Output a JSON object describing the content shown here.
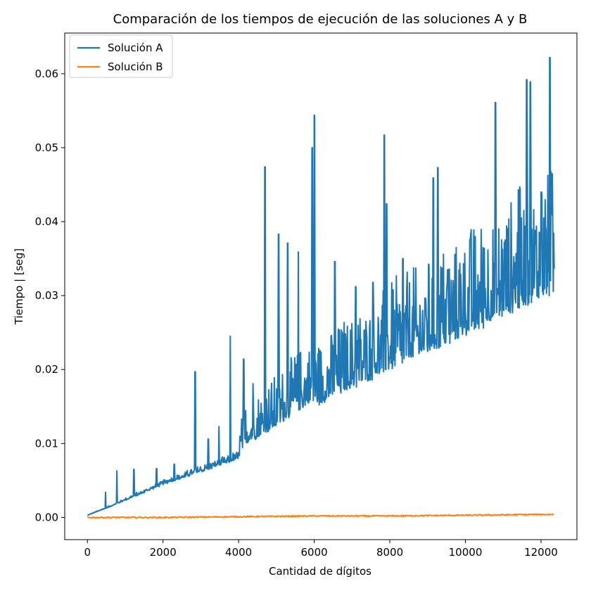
{
  "chart_data": {
    "type": "line",
    "title": "Comparación de los tiempos de ejecución de las soluciones A y B",
    "xlabel": "Cantidad de dígitos",
    "ylabel": "Tiempo | [seg]",
    "xlim": [
      -600,
      12950
    ],
    "ylim": [
      -0.003,
      0.0655
    ],
    "xticks": [
      0,
      2000,
      4000,
      6000,
      8000,
      10000,
      12000
    ],
    "xtick_labels": [
      "0",
      "2000",
      "4000",
      "6000",
      "8000",
      "10000",
      "12000"
    ],
    "yticks": [
      0,
      0.01,
      0.02,
      0.03,
      0.04,
      0.05,
      0.06
    ],
    "ytick_labels": [
      "0.00",
      "0.01",
      "0.02",
      "0.03",
      "0.04",
      "0.05",
      "0.06"
    ],
    "grid": false,
    "legend": "top-left",
    "series": [
      {
        "name": "Solución A",
        "color": "#1f77b4",
        "x": [
          0,
          500,
          1000,
          1500,
          2000,
          2500,
          3000,
          3500,
          4000,
          4200,
          4600,
          5000,
          5500,
          6000,
          6100,
          6500,
          7000,
          7500,
          8000,
          8500,
          9000,
          9500,
          10000,
          10500,
          11000,
          11500,
          12000,
          12350
        ],
        "y": [
          0.0003,
          0.0013,
          0.0024,
          0.0035,
          0.0046,
          0.0055,
          0.0064,
          0.0073,
          0.0082,
          0.0104,
          0.0115,
          0.0128,
          0.0148,
          0.0165,
          0.0158,
          0.017,
          0.0182,
          0.0194,
          0.0208,
          0.022,
          0.0232,
          0.0244,
          0.0257,
          0.027,
          0.0283,
          0.0296,
          0.0308,
          0.0316
        ],
        "peaks": [
          {
            "x": 480,
            "y": 0.0034
          },
          {
            "x": 780,
            "y": 0.0063
          },
          {
            "x": 1230,
            "y": 0.0065
          },
          {
            "x": 1830,
            "y": 0.0066
          },
          {
            "x": 2300,
            "y": 0.0072
          },
          {
            "x": 2850,
            "y": 0.0197
          },
          {
            "x": 3200,
            "y": 0.0106
          },
          {
            "x": 3480,
            "y": 0.0123
          },
          {
            "x": 3780,
            "y": 0.0245
          },
          {
            "x": 4130,
            "y": 0.0214
          },
          {
            "x": 4380,
            "y": 0.0181
          },
          {
            "x": 4700,
            "y": 0.0474
          },
          {
            "x": 5060,
            "y": 0.0383
          },
          {
            "x": 5300,
            "y": 0.0371
          },
          {
            "x": 5580,
            "y": 0.0359
          },
          {
            "x": 5950,
            "y": 0.05
          },
          {
            "x": 6010,
            "y": 0.0544
          },
          {
            "x": 6550,
            "y": 0.0346
          },
          {
            "x": 7100,
            "y": 0.0312
          },
          {
            "x": 7550,
            "y": 0.0318
          },
          {
            "x": 7850,
            "y": 0.0517
          },
          {
            "x": 7910,
            "y": 0.0424
          },
          {
            "x": 8350,
            "y": 0.035
          },
          {
            "x": 8950,
            "y": 0.0296
          },
          {
            "x": 9150,
            "y": 0.0459
          },
          {
            "x": 9270,
            "y": 0.0473
          },
          {
            "x": 9530,
            "y": 0.0335
          },
          {
            "x": 9950,
            "y": 0.0343
          },
          {
            "x": 10500,
            "y": 0.0364
          },
          {
            "x": 10790,
            "y": 0.0561
          },
          {
            "x": 11400,
            "y": 0.0443
          },
          {
            "x": 11620,
            "y": 0.0592
          },
          {
            "x": 11720,
            "y": 0.0589
          },
          {
            "x": 12010,
            "y": 0.044
          },
          {
            "x": 12230,
            "y": 0.0622
          }
        ]
      },
      {
        "name": "Solución B",
        "color": "#ff7f0e",
        "x": [
          0,
          2000,
          4000,
          6000,
          8000,
          10000,
          12000,
          12350
        ],
        "y": [
          0.0,
          0.0,
          0.0001,
          0.0002,
          0.0002,
          0.0003,
          0.0004,
          0.0004
        ]
      }
    ]
  }
}
